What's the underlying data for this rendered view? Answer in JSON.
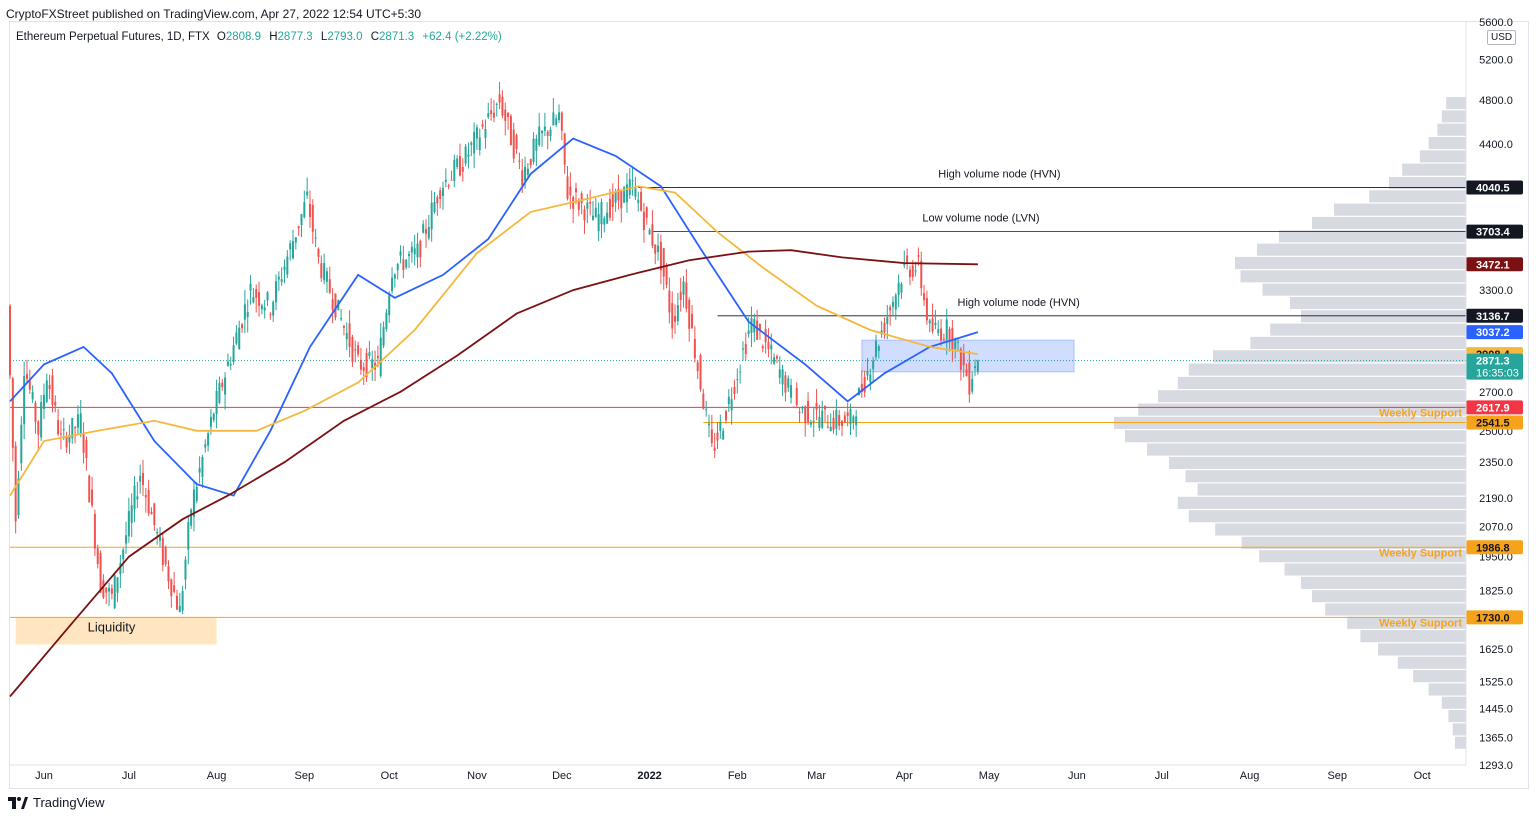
{
  "header": {
    "publish_line": "CryptoFXStreet published on TradingView.com, Apr 27, 2022 12:54 UTC+5:30"
  },
  "legend": {
    "symbol": "Ethereum Perpetual Futures, 1D, FTX",
    "open_label": "O",
    "open": "2808.9",
    "high_label": "H",
    "high": "2877.3",
    "low_label": "L",
    "low": "2793.0",
    "close_label": "C",
    "close": "2871.3",
    "change": "+62.4 (+2.22%)"
  },
  "currency": "USD",
  "footer": {
    "brand": "TradingView"
  },
  "colors": {
    "up": "#26a69a",
    "down": "#ef5350",
    "ma_blue": "#2962ff",
    "ma_orange": "#f5b83d",
    "ma_darkred": "#7b1113",
    "support_red": "#f23645",
    "support_orange": "#f7a21b",
    "profile": "#d1d4dc",
    "box_blue": "#2962ff",
    "box_orange": "#ffb74d"
  },
  "chart_data": {
    "type": "candlestick",
    "title": "Ethereum Perpetual Futures, 1D, FTX",
    "scale": "log",
    "ylim": [
      1293,
      5600
    ],
    "x_ticks": [
      "Jun",
      "Jul",
      "Aug",
      "Sep",
      "Oct",
      "Nov",
      "Dec",
      "2022",
      "Feb",
      "Mar",
      "Apr",
      "May",
      "Jun",
      "Jul",
      "Aug",
      "Sep",
      "Oct"
    ],
    "y_ticks": [
      "5600.0",
      "5200.0",
      "4800.0",
      "4400.0",
      "4040.5",
      "3703.4",
      "3472.1",
      "3300.0",
      "3136.7",
      "3037.2",
      "2908.4",
      "2871.3",
      "2700.0",
      "2617.9",
      "2541.5",
      "2500.0",
      "2350.0",
      "2190.0",
      "2070.0",
      "1986.8",
      "1950.0",
      "1825.0",
      "1730.0",
      "1625.0",
      "1525.0",
      "1445.0",
      "1365.0",
      "1293.0"
    ],
    "price_path": [
      [
        "2021-05-20",
        3200
      ],
      [
        "2021-05-23",
        2100
      ],
      [
        "2021-05-26",
        2850
      ],
      [
        "2021-05-31",
        2500
      ],
      [
        "2021-06-03",
        2800
      ],
      [
        "2021-06-08",
        2450
      ],
      [
        "2021-06-15",
        2550
      ],
      [
        "2021-06-22",
        1850
      ],
      [
        "2021-06-26",
        1800
      ],
      [
        "2021-07-06",
        2300
      ],
      [
        "2021-07-14",
        1950
      ],
      [
        "2021-07-20",
        1750
      ],
      [
        "2021-07-24",
        2150
      ],
      [
        "2021-08-01",
        2600
      ],
      [
        "2021-08-14",
        3300
      ],
      [
        "2021-08-21",
        3200
      ],
      [
        "2021-09-03",
        3950
      ],
      [
        "2021-09-07",
        3500
      ],
      [
        "2021-09-21",
        2850
      ],
      [
        "2021-09-28",
        2850
      ],
      [
        "2021-10-03",
        3450
      ],
      [
        "2021-10-12",
        3550
      ],
      [
        "2021-10-20",
        4050
      ],
      [
        "2021-10-28",
        4250
      ],
      [
        "2021-11-10",
        4800
      ],
      [
        "2021-11-18",
        4150
      ],
      [
        "2021-11-24",
        4450
      ],
      [
        "2021-12-01",
        4650
      ],
      [
        "2021-12-04",
        4000
      ],
      [
        "2021-12-14",
        3800
      ],
      [
        "2021-12-27",
        4050
      ],
      [
        "2022-01-01",
        3750
      ],
      [
        "2022-01-06",
        3500
      ],
      [
        "2022-01-10",
        3100
      ],
      [
        "2022-01-14",
        3350
      ],
      [
        "2022-01-24",
        2400
      ],
      [
        "2022-01-28",
        2550
      ],
      [
        "2022-02-07",
        3100
      ],
      [
        "2022-02-14",
        2900
      ],
      [
        "2022-02-24",
        2600
      ],
      [
        "2022-03-08",
        2550
      ],
      [
        "2022-03-14",
        2550
      ],
      [
        "2022-03-24",
        3000
      ],
      [
        "2022-04-02",
        3450
      ],
      [
        "2022-04-07",
        3450
      ],
      [
        "2022-04-11",
        3050
      ],
      [
        "2022-04-18",
        3050
      ],
      [
        "2022-04-25",
        2750
      ],
      [
        "2022-04-27",
        2871.3
      ]
    ],
    "last_candle": {
      "open": 2808.9,
      "high": 2877.3,
      "low": 2793.0,
      "close": 2871.3
    },
    "moving_averages": [
      {
        "color_key": "ma_blue",
        "label_value": "3037.2",
        "points": [
          [
            "2021-05-20",
            2650
          ],
          [
            "2021-06-01",
            2850
          ],
          [
            "2021-06-15",
            2950
          ],
          [
            "2021-06-25",
            2800
          ],
          [
            "2021-07-10",
            2450
          ],
          [
            "2021-07-25",
            2250
          ],
          [
            "2021-08-07",
            2200
          ],
          [
            "2021-08-20",
            2500
          ],
          [
            "2021-09-03",
            2950
          ],
          [
            "2021-09-20",
            3400
          ],
          [
            "2021-10-03",
            3250
          ],
          [
            "2021-10-20",
            3400
          ],
          [
            "2021-11-05",
            3650
          ],
          [
            "2021-11-20",
            4150
          ],
          [
            "2021-12-05",
            4450
          ],
          [
            "2021-12-20",
            4300
          ],
          [
            "2022-01-05",
            4050
          ],
          [
            "2022-01-20",
            3550
          ],
          [
            "2022-02-05",
            3100
          ],
          [
            "2022-02-25",
            2850
          ],
          [
            "2022-03-12",
            2650
          ],
          [
            "2022-03-25",
            2800
          ],
          [
            "2022-04-10",
            2950
          ],
          [
            "2022-04-27",
            3037.2
          ]
        ]
      },
      {
        "color_key": "ma_orange",
        "label_value": "2908.4",
        "points": [
          [
            "2021-05-20",
            2200
          ],
          [
            "2021-06-01",
            2450
          ],
          [
            "2021-06-20",
            2500
          ],
          [
            "2021-07-10",
            2550
          ],
          [
            "2021-07-25",
            2500
          ],
          [
            "2021-08-15",
            2500
          ],
          [
            "2021-09-01",
            2600
          ],
          [
            "2021-09-20",
            2750
          ],
          [
            "2021-10-10",
            3050
          ],
          [
            "2021-11-01",
            3550
          ],
          [
            "2021-11-20",
            3850
          ],
          [
            "2021-12-10",
            3950
          ],
          [
            "2021-12-28",
            4050
          ],
          [
            "2022-01-10",
            4000
          ],
          [
            "2022-01-25",
            3700
          ],
          [
            "2022-02-10",
            3450
          ],
          [
            "2022-03-01",
            3200
          ],
          [
            "2022-03-20",
            3050
          ],
          [
            "2022-04-10",
            2950
          ],
          [
            "2022-04-27",
            2908.4
          ]
        ]
      },
      {
        "color_key": "ma_darkred",
        "label_value": "3472.1",
        "points": [
          [
            "2021-05-20",
            1480
          ],
          [
            "2021-06-10",
            1700
          ],
          [
            "2021-07-01",
            1950
          ],
          [
            "2021-07-20",
            2100
          ],
          [
            "2021-08-05",
            2200
          ],
          [
            "2021-08-25",
            2350
          ],
          [
            "2021-09-15",
            2550
          ],
          [
            "2021-10-05",
            2700
          ],
          [
            "2021-10-25",
            2900
          ],
          [
            "2021-11-15",
            3150
          ],
          [
            "2021-12-05",
            3300
          ],
          [
            "2021-12-25",
            3400
          ],
          [
            "2022-01-15",
            3500
          ],
          [
            "2022-02-05",
            3560
          ],
          [
            "2022-02-20",
            3570
          ],
          [
            "2022-03-10",
            3520
          ],
          [
            "2022-04-01",
            3480
          ],
          [
            "2022-04-27",
            3472.1
          ]
        ]
      }
    ],
    "levels": [
      {
        "label": "Weekly Support",
        "value": 2617.9,
        "color_key": "support_red"
      },
      {
        "label": "",
        "value": 2541.5,
        "color_key": "support_orange"
      },
      {
        "label": "Weekly Support",
        "value": 1986.8,
        "color_key": "support_orange"
      },
      {
        "label": "Weekly Support",
        "value": 1730.0,
        "color_key": "support_orange"
      }
    ],
    "node_annotations": [
      {
        "label": "High volume node (HVN)",
        "value": 4040.5
      },
      {
        "label": "Low volume node (LVN)",
        "value": 3703.4
      },
      {
        "label": "High volume node (HVN)",
        "value": 3136.7
      }
    ],
    "zones": [
      {
        "label": "Liquidity",
        "from": "2021-05-22",
        "to": "2021-08-01",
        "low": 1640,
        "high": 1730,
        "color_key": "box_orange"
      },
      {
        "label": "",
        "from": "2022-03-17",
        "to": "2022-05-31",
        "low": 2808,
        "high": 2990,
        "color_key": "box_blue"
      }
    ],
    "price_labels": [
      {
        "text": "4040.5",
        "bg": "#131722",
        "fg": "#ffffff"
      },
      {
        "text": "3703.4",
        "bg": "#131722",
        "fg": "#ffffff"
      },
      {
        "text": "3472.1",
        "bg": "#7b1113",
        "fg": "#ffffff"
      },
      {
        "text": "3136.7",
        "bg": "#131722",
        "fg": "#ffffff"
      },
      {
        "text": "3037.2",
        "bg": "#2962ff",
        "fg": "#ffffff"
      },
      {
        "text": "2908.4",
        "bg": "#f5b83d",
        "fg": "#131722"
      },
      {
        "text": "2871.3",
        "sub": "16:35:03",
        "bg": "#26a69a",
        "fg": "#ffffff"
      },
      {
        "text": "2617.9",
        "bg": "#f23645",
        "fg": "#ffffff"
      },
      {
        "text": "2541.5",
        "bg": "#f7a21b",
        "fg": "#131722"
      },
      {
        "text": "1986.8",
        "bg": "#f7a21b",
        "fg": "#131722"
      },
      {
        "text": "1730.0",
        "bg": "#f7a21b",
        "fg": "#131722"
      }
    ]
  }
}
